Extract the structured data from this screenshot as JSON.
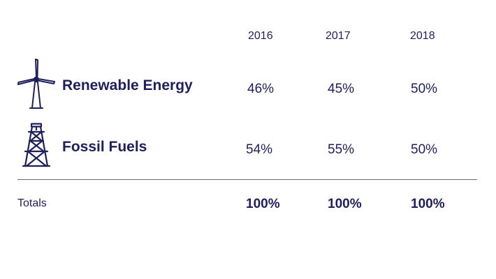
{
  "chart_data": {
    "type": "table",
    "columns": [
      "2016",
      "2017",
      "2018"
    ],
    "rows": [
      {
        "label": "Renewable Energy",
        "icon": "wind-turbine-icon",
        "values": [
          "46%",
          "45%",
          "50%"
        ]
      },
      {
        "label": "Fossil Fuels",
        "icon": "oil-derrick-icon",
        "values": [
          "54%",
          "55%",
          "50%"
        ]
      }
    ],
    "totals": {
      "label": "Totals",
      "values": [
        "100%",
        "100%",
        "100%"
      ]
    },
    "colors": {
      "text": "#1f1f5c",
      "divider": "#6a6a7a"
    }
  }
}
